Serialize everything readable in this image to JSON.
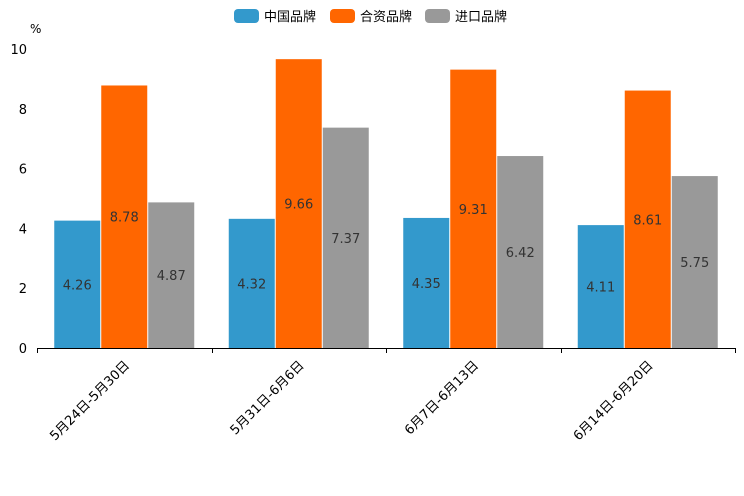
{
  "chart_data": {
    "type": "bar",
    "title": "",
    "xlabel": "",
    "ylabel": "%",
    "ylim": [
      0,
      10
    ],
    "yticks": [
      0,
      2,
      4,
      6,
      8,
      10
    ],
    "grid": false,
    "legend_position": "top",
    "categories": [
      "5月24日-5月30日",
      "5月31日-6月6日",
      "6月7日-6月13日",
      "6月14日-6月20日"
    ],
    "series": [
      {
        "name": "中国品牌",
        "color": "#3399cc",
        "values": [
          4.26,
          4.32,
          4.35,
          4.11
        ]
      },
      {
        "name": "合资品牌",
        "color": "#ff6600",
        "values": [
          8.78,
          9.66,
          9.31,
          8.61
        ]
      },
      {
        "name": "进口品牌",
        "color": "#999999",
        "values": [
          4.87,
          7.37,
          6.42,
          5.75
        ]
      }
    ]
  }
}
